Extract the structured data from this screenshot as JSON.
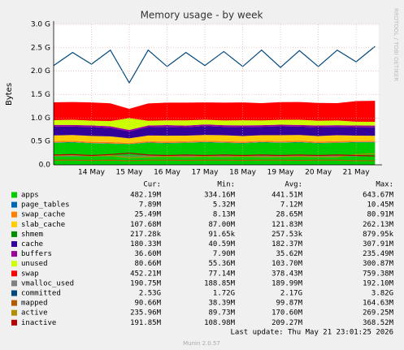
{
  "chart_data": {
    "type": "area",
    "title": "Memory usage - by week",
    "ylabel": "Bytes",
    "watermark": "RRDTOOL / TOBI OETIKER",
    "x": [
      13,
      13.5,
      14,
      14.5,
      15,
      15.5,
      16,
      16.5,
      17,
      17.5,
      18,
      18.5,
      19,
      19.5,
      20,
      20.5,
      21,
      21.5
    ],
    "xlim": [
      13,
      21.6
    ],
    "xticks": [
      {
        "value": 14,
        "label": "14 May"
      },
      {
        "value": 15,
        "label": "15 May"
      },
      {
        "value": 16,
        "label": "16 May"
      },
      {
        "value": 17,
        "label": "17 May"
      },
      {
        "value": 18,
        "label": "18 May"
      },
      {
        "value": 19,
        "label": "19 May"
      },
      {
        "value": 20,
        "label": "20 May"
      },
      {
        "value": 21,
        "label": "21 May"
      }
    ],
    "ylim": [
      0,
      3
    ],
    "yticks": [
      {
        "value": 0,
        "label": "0.0"
      },
      {
        "value": 0.5,
        "label": "0.5 G"
      },
      {
        "value": 1,
        "label": "1.0 G"
      },
      {
        "value": 1.5,
        "label": "1.5 G"
      },
      {
        "value": 2,
        "label": "2.0 G"
      },
      {
        "value": 2.5,
        "label": "2.5 G"
      },
      {
        "value": 3,
        "label": "3.0 G"
      }
    ],
    "grid": true,
    "series": [
      {
        "name": "apps",
        "color": "#00cc00",
        "style": "area",
        "values": [
          0.47,
          0.48,
          0.46,
          0.45,
          0.44,
          0.47,
          0.46,
          0.47,
          0.48,
          0.47,
          0.46,
          0.48,
          0.47,
          0.48,
          0.46,
          0.47,
          0.48,
          0.48
        ]
      },
      {
        "name": "page_tables",
        "color": "#0066b3",
        "style": "area",
        "values": [
          0.008,
          0.008,
          0.007,
          0.008,
          0.006,
          0.008,
          0.008,
          0.007,
          0.008,
          0.008,
          0.008,
          0.007,
          0.008,
          0.008,
          0.008,
          0.007,
          0.008,
          0.008
        ]
      },
      {
        "name": "swap_cache",
        "color": "#ff8000",
        "style": "area",
        "values": [
          0.03,
          0.028,
          0.026,
          0.03,
          0.02,
          0.028,
          0.03,
          0.027,
          0.029,
          0.03,
          0.028,
          0.026,
          0.03,
          0.029,
          0.027,
          0.03,
          0.026,
          0.025
        ]
      },
      {
        "name": "slab_cache",
        "color": "#ffcc00",
        "style": "area",
        "values": [
          0.12,
          0.12,
          0.125,
          0.12,
          0.1,
          0.12,
          0.125,
          0.12,
          0.12,
          0.125,
          0.12,
          0.12,
          0.125,
          0.12,
          0.12,
          0.125,
          0.11,
          0.108
        ]
      },
      {
        "name": "shmem",
        "color": "#008f00",
        "style": "area",
        "values": [
          0.0003,
          0.0003,
          0.0003,
          0.0003,
          0.0002,
          0.0003,
          0.0003,
          0.0003,
          0.0003,
          0.0003,
          0.0003,
          0.0003,
          0.0003,
          0.0003,
          0.0003,
          0.0003,
          0.0002,
          0.0002
        ]
      },
      {
        "name": "cache",
        "color": "#330099",
        "style": "area",
        "values": [
          0.19,
          0.18,
          0.19,
          0.18,
          0.15,
          0.18,
          0.19,
          0.18,
          0.19,
          0.18,
          0.19,
          0.18,
          0.19,
          0.18,
          0.19,
          0.18,
          0.18,
          0.18
        ]
      },
      {
        "name": "buffers",
        "color": "#990099",
        "style": "area",
        "values": [
          0.036,
          0.036,
          0.035,
          0.036,
          0.03,
          0.035,
          0.036,
          0.035,
          0.036,
          0.035,
          0.036,
          0.035,
          0.036,
          0.035,
          0.036,
          0.035,
          0.036,
          0.037
        ]
      },
      {
        "name": "unused",
        "color": "#ccff00",
        "style": "area",
        "values": [
          0.1,
          0.11,
          0.1,
          0.11,
          0.25,
          0.1,
          0.1,
          0.11,
          0.1,
          0.1,
          0.11,
          0.1,
          0.1,
          0.11,
          0.1,
          0.1,
          0.08,
          0.08
        ]
      },
      {
        "name": "swap",
        "color": "#ff0000",
        "style": "area",
        "values": [
          0.38,
          0.38,
          0.39,
          0.38,
          0.2,
          0.37,
          0.38,
          0.38,
          0.37,
          0.38,
          0.38,
          0.37,
          0.38,
          0.38,
          0.38,
          0.37,
          0.44,
          0.45
        ]
      },
      {
        "name": "vmalloc_used",
        "color": "#808080",
        "style": "line",
        "values": [
          0.19,
          0.19,
          0.19,
          0.19,
          0.19,
          0.19,
          0.19,
          0.19,
          0.19,
          0.19,
          0.19,
          0.19,
          0.19,
          0.19,
          0.19,
          0.19,
          0.19,
          0.19
        ]
      },
      {
        "name": "committed",
        "color": "#00487d",
        "style": "line",
        "values": [
          2.12,
          2.4,
          2.15,
          2.45,
          1.75,
          2.45,
          2.1,
          2.4,
          2.12,
          2.42,
          2.1,
          2.45,
          2.08,
          2.44,
          2.1,
          2.45,
          2.2,
          2.53
        ]
      },
      {
        "name": "mapped",
        "color": "#b35a00",
        "style": "line",
        "values": [
          0.1,
          0.1,
          0.095,
          0.1,
          0.09,
          0.1,
          0.1,
          0.095,
          0.1,
          0.1,
          0.095,
          0.1,
          0.1,
          0.095,
          0.1,
          0.1,
          0.09,
          0.09
        ]
      },
      {
        "name": "active",
        "color": "#b38f00",
        "style": "line",
        "values": [
          0.2,
          0.21,
          0.19,
          0.2,
          0.15,
          0.17,
          0.18,
          0.17,
          0.18,
          0.17,
          0.18,
          0.17,
          0.17,
          0.18,
          0.17,
          0.17,
          0.22,
          0.24
        ]
      },
      {
        "name": "inactive",
        "color": "#b30000",
        "style": "line",
        "values": [
          0.21,
          0.22,
          0.2,
          0.22,
          0.25,
          0.21,
          0.2,
          0.21,
          0.2,
          0.21,
          0.2,
          0.21,
          0.2,
          0.21,
          0.2,
          0.21,
          0.2,
          0.19
        ]
      }
    ],
    "legend_table": {
      "headers": [
        "Cur:",
        "Min:",
        "Avg:",
        "Max:"
      ],
      "rows": [
        [
          "482.19M",
          "334.16M",
          "441.51M",
          "643.67M"
        ],
        [
          "7.89M",
          "5.32M",
          "7.12M",
          "10.45M"
        ],
        [
          "25.49M",
          "8.13M",
          "28.65M",
          "80.91M"
        ],
        [
          "107.68M",
          "87.00M",
          "121.83M",
          "262.13M"
        ],
        [
          "217.28k",
          "91.65k",
          "257.53k",
          "879.95k"
        ],
        [
          "180.33M",
          "40.59M",
          "182.37M",
          "307.91M"
        ],
        [
          "36.60M",
          "7.90M",
          "35.62M",
          "235.49M"
        ],
        [
          "80.66M",
          "55.36M",
          "103.70M",
          "300.87M"
        ],
        [
          "452.21M",
          "77.14M",
          "378.43M",
          "759.38M"
        ],
        [
          "190.75M",
          "188.85M",
          "189.99M",
          "192.10M"
        ],
        [
          "2.53G",
          "1.72G",
          "2.17G",
          "3.82G"
        ],
        [
          "90.66M",
          "38.39M",
          "99.87M",
          "164.63M"
        ],
        [
          "235.96M",
          "89.73M",
          "170.60M",
          "269.25M"
        ],
        [
          "191.85M",
          "108.98M",
          "209.27M",
          "368.52M"
        ]
      ]
    },
    "last_update": "Last update: Thu May 21 23:01:25 2026",
    "footer": "Munin 2.0.57"
  }
}
